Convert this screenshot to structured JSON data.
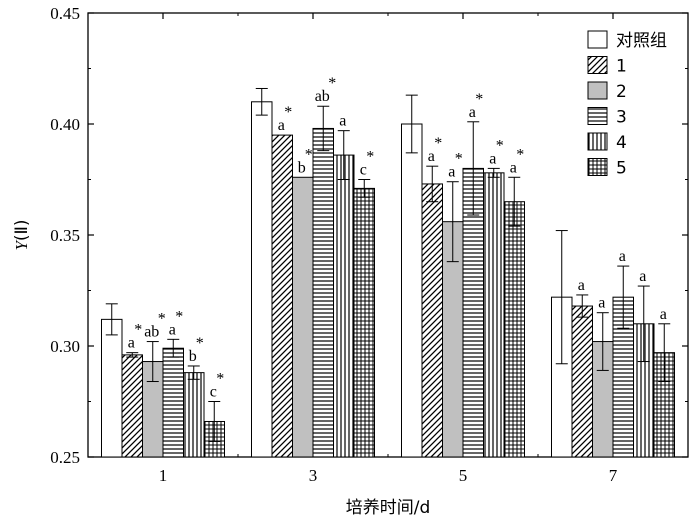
{
  "chart_data": {
    "type": "bar",
    "xlabel": "培养时间/d",
    "ylabel_var": "Y",
    "ylabel_arg": "(Ⅱ)",
    "ylim": [
      0.25,
      0.45
    ],
    "yticks": [
      "0.25",
      "0.30",
      "0.35",
      "0.40",
      "0.45"
    ],
    "categories": [
      "1",
      "3",
      "5",
      "7"
    ],
    "legend_position": "top-right",
    "series": [
      {
        "name": "对照组",
        "pattern": "white",
        "values": [
          0.312,
          0.41,
          0.4,
          0.322
        ],
        "errors": [
          0.007,
          0.006,
          0.013,
          0.03
        ],
        "stars": [
          "",
          "",
          "",
          ""
        ],
        "letters": [
          "",
          "",
          "",
          ""
        ]
      },
      {
        "name": "1",
        "pattern": "diagonal",
        "values": [
          0.296,
          0.395,
          0.373,
          0.318
        ],
        "errors": [
          0.001,
          0.0,
          0.008,
          0.005
        ],
        "stars": [
          "*",
          "*",
          "*",
          ""
        ],
        "letters": [
          "a",
          "a",
          "a",
          "a"
        ]
      },
      {
        "name": "2",
        "pattern": "gray",
        "values": [
          0.293,
          0.376,
          0.356,
          0.302
        ],
        "errors": [
          0.009,
          0.0,
          0.018,
          0.013
        ],
        "stars": [
          "*",
          "*",
          "*",
          ""
        ],
        "letters": [
          "ab",
          "b",
          "a",
          "a"
        ]
      },
      {
        "name": "3",
        "pattern": "horizontal",
        "values": [
          0.299,
          0.398,
          0.38,
          0.322
        ],
        "errors": [
          0.004,
          0.01,
          0.021,
          0.014
        ],
        "stars": [
          "*",
          "*",
          "*",
          ""
        ],
        "letters": [
          "a",
          "ab",
          "a",
          "a"
        ]
      },
      {
        "name": "4",
        "pattern": "vertical",
        "values": [
          0.288,
          0.386,
          0.378,
          0.31
        ],
        "errors": [
          0.003,
          0.011,
          0.002,
          0.017
        ],
        "stars": [
          "*",
          "",
          "*",
          ""
        ],
        "letters": [
          "b",
          "a",
          "a",
          "a"
        ]
      },
      {
        "name": "5",
        "pattern": "grid",
        "values": [
          0.266,
          0.371,
          0.365,
          0.297
        ],
        "errors": [
          0.009,
          0.004,
          0.011,
          0.013
        ],
        "stars": [
          "*",
          "*",
          "*",
          ""
        ],
        "letters": [
          "c",
          "c",
          "a",
          "a"
        ]
      }
    ]
  }
}
